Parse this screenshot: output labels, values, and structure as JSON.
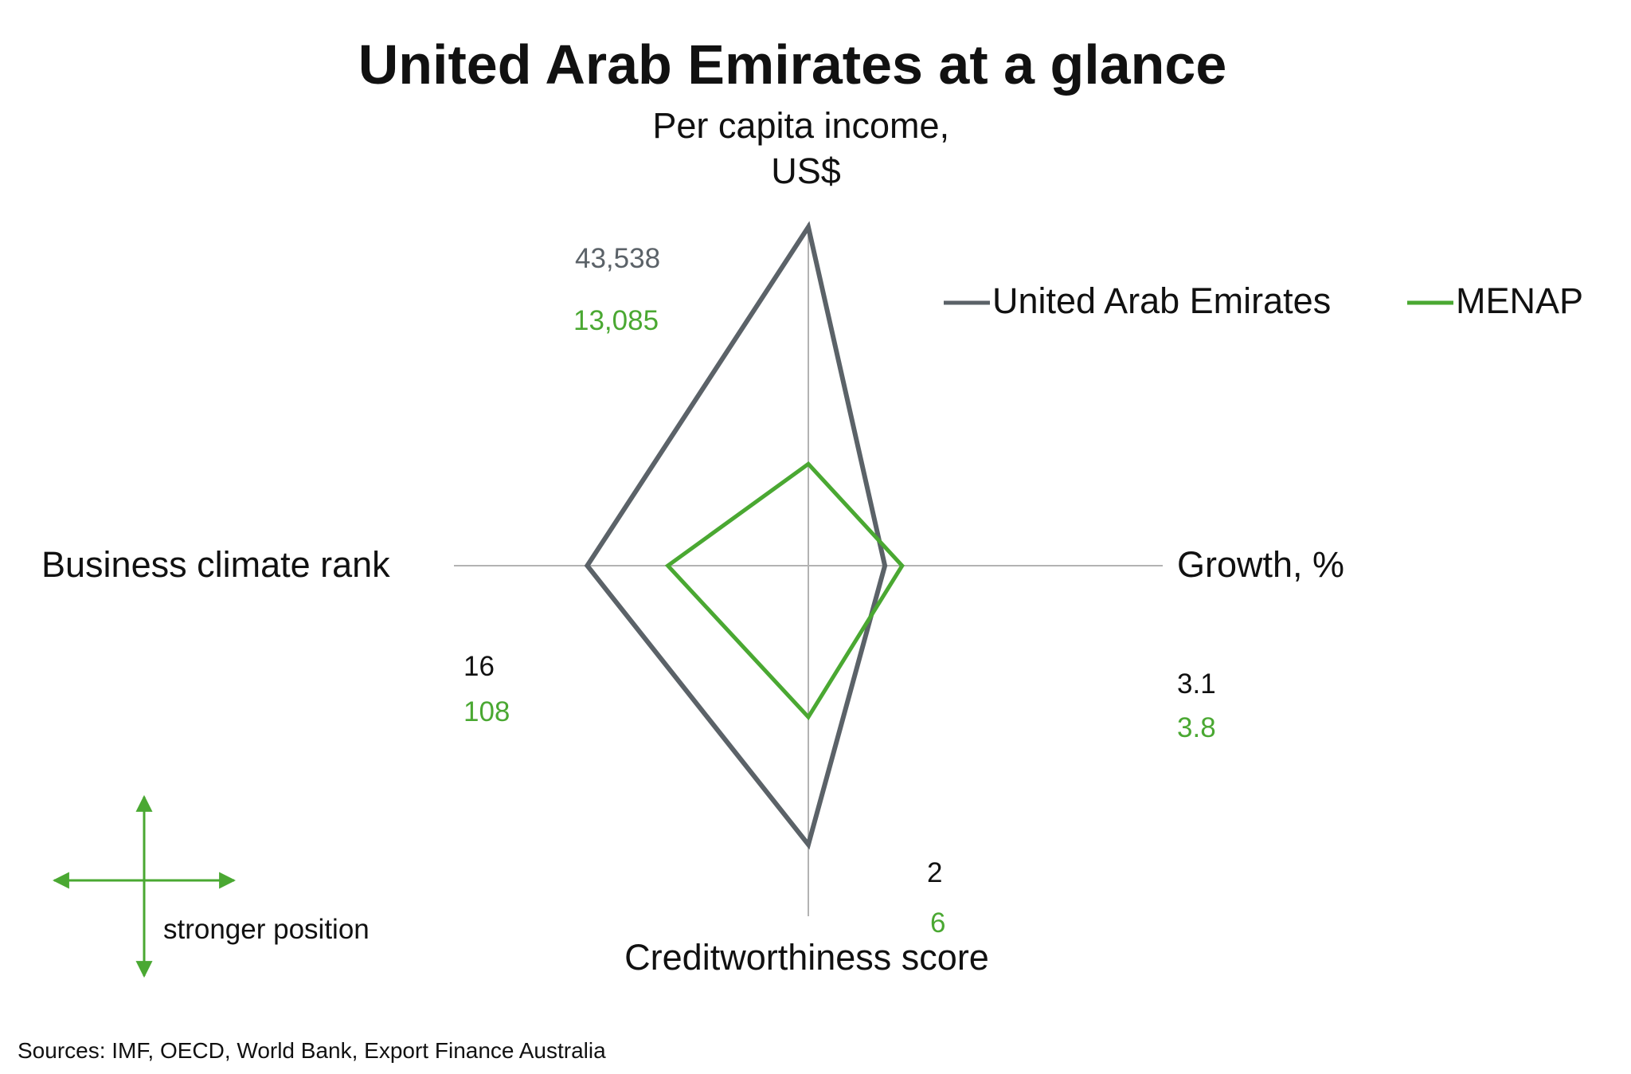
{
  "chart_data": {
    "type": "radar",
    "title": "United Arab Emirates at a glance",
    "axes": [
      {
        "key": "income",
        "label_lines": [
          "Per capita income,",
          "US$"
        ]
      },
      {
        "key": "growth",
        "label_lines": [
          "Growth, %"
        ]
      },
      {
        "key": "credit",
        "label_lines": [
          "Creditworthiness score"
        ]
      },
      {
        "key": "business",
        "label_lines": [
          "Business climate rank"
        ]
      }
    ],
    "series": [
      {
        "name": "United Arab Emirates",
        "color": "#5b6268",
        "values": {
          "income": 43538,
          "growth": 3.1,
          "credit": 2,
          "business": 16
        },
        "value_labels": {
          "income": "43,538",
          "growth": "3.1",
          "credit": "2",
          "business": "16"
        }
      },
      {
        "name": "MENAP",
        "color": "#4aa832",
        "values": {
          "income": 13085,
          "growth": 3.8,
          "credit": 6,
          "business": 108
        },
        "value_labels": {
          "income": "13,085",
          "growth": "3.8",
          "credit": "6",
          "business": "108"
        }
      }
    ],
    "legend_position": "top-right",
    "strength_note": "stronger position",
    "source": "Sources: IMF, OECD, World Bank, Export Finance Australia"
  },
  "colors": {
    "axis": "#b3b3b3",
    "text": "#111111",
    "uae": "#5b6268",
    "menap": "#4aa832"
  }
}
